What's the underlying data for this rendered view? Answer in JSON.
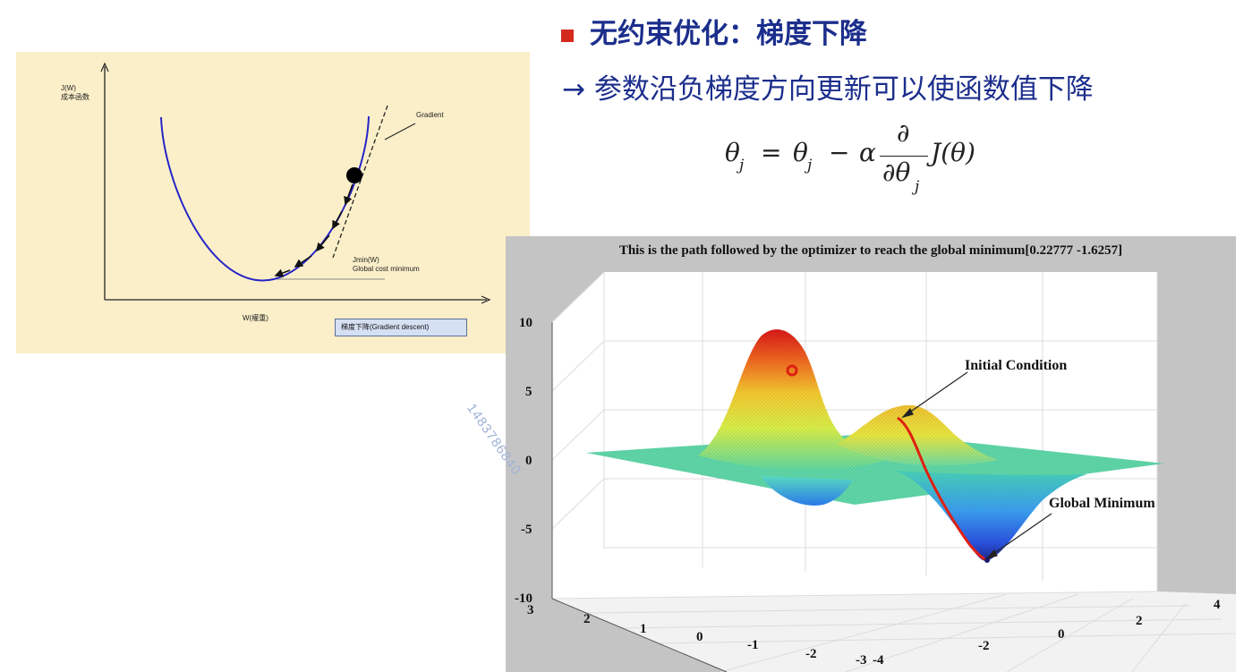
{
  "heading": {
    "title": "无约束优化：梯度下降",
    "subtitle": "→ 参数沿负梯度方向更新可以使函数值下降",
    "bullet_color": "#d42a1e",
    "text_color": "#1c2e8c"
  },
  "formula": {
    "lhs": "θ",
    "lhs_sub": "j",
    "eq": "=",
    "rhs_theta": "θ",
    "rhs_sub": "j",
    "minus": "−",
    "alpha": "α",
    "num": "∂",
    "den": "∂θ",
    "den_sub": "j",
    "func": "J(θ)"
  },
  "gradient_figure": {
    "y_axis_label_1": "J(W)",
    "y_axis_label_2": "成本函数",
    "x_axis_label": "W(權重)",
    "gradient_label": "Gradient",
    "min_label_1": "Jmin(W)",
    "min_label_2": "Global cost minimum",
    "button_label": "梯度下降(Gradient descent)",
    "background": "#fbefc9",
    "curve_color": "#2424c8"
  },
  "plot3d": {
    "title": "This is the path followed by the optimizer to reach the global minimum[0.22777    -1.6257]",
    "z_ticks": [
      "10",
      "5",
      "0",
      "-5",
      "-10"
    ],
    "y_ticks": [
      "3",
      "2",
      "1",
      "0",
      "-1",
      "-2",
      "-3"
    ],
    "x_ticks": [
      "-4",
      "-2",
      "0",
      "2",
      "4"
    ],
    "annotation_initial": "Initial Condition",
    "annotation_global": "Global Minimum",
    "path_color": "#e02010",
    "background": "#c4c4c4"
  },
  "watermark": "1483786840"
}
